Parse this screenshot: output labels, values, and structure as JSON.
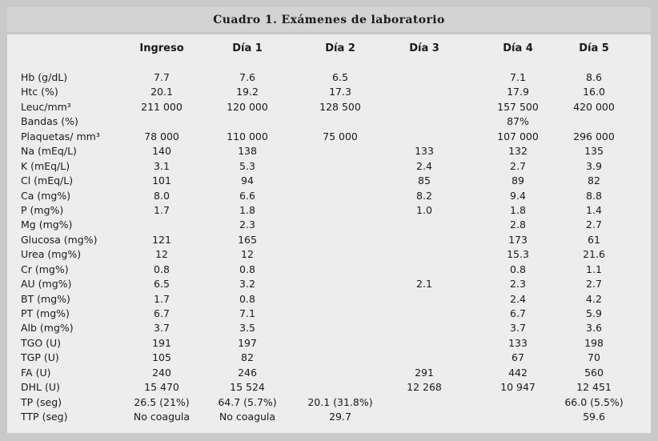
{
  "title": "Cuadro 1. Exámenes de laboratorio",
  "columns": [
    "Ingreso",
    "Día 1",
    "Día 2",
    "Día 3",
    "Día 4",
    "Día 5"
  ],
  "rows": [
    {
      "label": "Hb (g/dL)",
      "values": [
        "7.7",
        "7.6",
        "6.5",
        "",
        "7.1",
        "8.6"
      ]
    },
    {
      "label": "Htc (%)",
      "values": [
        "20.1",
        "19.2",
        "17.3",
        "",
        "17.9",
        "16.0"
      ]
    },
    {
      "label": "Leuc/mm³",
      "values": [
        "211 000",
        "120 000",
        "128 500",
        "",
        "157 500",
        "420 000"
      ]
    },
    {
      "label": "Bandas (%)",
      "values": [
        "",
        "",
        "",
        "",
        "87%",
        ""
      ]
    },
    {
      "label": "Plaquetas/ mm³",
      "values": [
        "78 000",
        "110 000",
        "75 000",
        "",
        "107 000",
        "296 000"
      ]
    },
    {
      "label": "Na (mEq/L)",
      "values": [
        "140",
        "138",
        "",
        "133",
        "132",
        "135"
      ]
    },
    {
      "label": "K (mEq/L)",
      "values": [
        "3.1",
        "5.3",
        "",
        "2.4",
        "2.7",
        "3.9"
      ]
    },
    {
      "label": "Cl (mEq/L)",
      "values": [
        "101",
        "94",
        "",
        "85",
        "89",
        "82"
      ]
    },
    {
      "label": "Ca (mg%)",
      "values": [
        "8.0",
        "6.6",
        "",
        "8.2",
        "9.4",
        "8.8"
      ]
    },
    {
      "label": "P (mg%)",
      "values": [
        "1.7",
        "1.8",
        "",
        "1.0",
        "1.8",
        "1.4"
      ]
    },
    {
      "label": "Mg (mg%)",
      "values": [
        "",
        "2.3",
        "",
        "",
        "2.8",
        "2.7"
      ]
    },
    {
      "label": "Glucosa (mg%)",
      "values": [
        "121",
        "165",
        "",
        "",
        "173",
        "61"
      ]
    },
    {
      "label": "Urea (mg%)",
      "values": [
        "12",
        "12",
        "",
        "",
        "15.3",
        "21.6"
      ]
    },
    {
      "label": "Cr (mg%)",
      "values": [
        "0.8",
        "0.8",
        "",
        "",
        "0.8",
        "1.1"
      ]
    },
    {
      "label": "AU (mg%)",
      "values": [
        "6.5",
        "3.2",
        "",
        "2.1",
        "2.3",
        "2.7"
      ]
    },
    {
      "label": "BT (mg%)",
      "values": [
        "1.7",
        "0.8",
        "",
        "",
        "2.4",
        "4.2"
      ]
    },
    {
      "label": "PT (mg%)",
      "values": [
        "6.7",
        "7.1",
        "",
        "",
        "6.7",
        "5.9"
      ]
    },
    {
      "label": "Alb (mg%)",
      "values": [
        "3.7",
        "3.5",
        "",
        "",
        "3.7",
        "3.6"
      ]
    },
    {
      "label": "TGO (U)",
      "values": [
        "191",
        "197",
        "",
        "",
        "133",
        "198"
      ]
    },
    {
      "label": "TGP (U)",
      "values": [
        "105",
        "82",
        "",
        "",
        "67",
        "70"
      ]
    },
    {
      "label": "FA (U)",
      "values": [
        "240",
        "246",
        "",
        "291",
        "442",
        "560"
      ]
    },
    {
      "label": "DHL (U)",
      "values": [
        "15 470",
        "15 524",
        "",
        "12 268",
        "10 947",
        "12 451"
      ]
    },
    {
      "label": "TP (seg)",
      "values": [
        "26.5 (21%)",
        "64.7 (5.7%)",
        "20.1 (31.8%)",
        "",
        "",
        "66.0 (5.5%)"
      ]
    },
    {
      "label": "TTP (seg)",
      "values": [
        "No coagula",
        "No coagula",
        "29.7",
        "",
        "",
        "59.6"
      ]
    }
  ]
}
